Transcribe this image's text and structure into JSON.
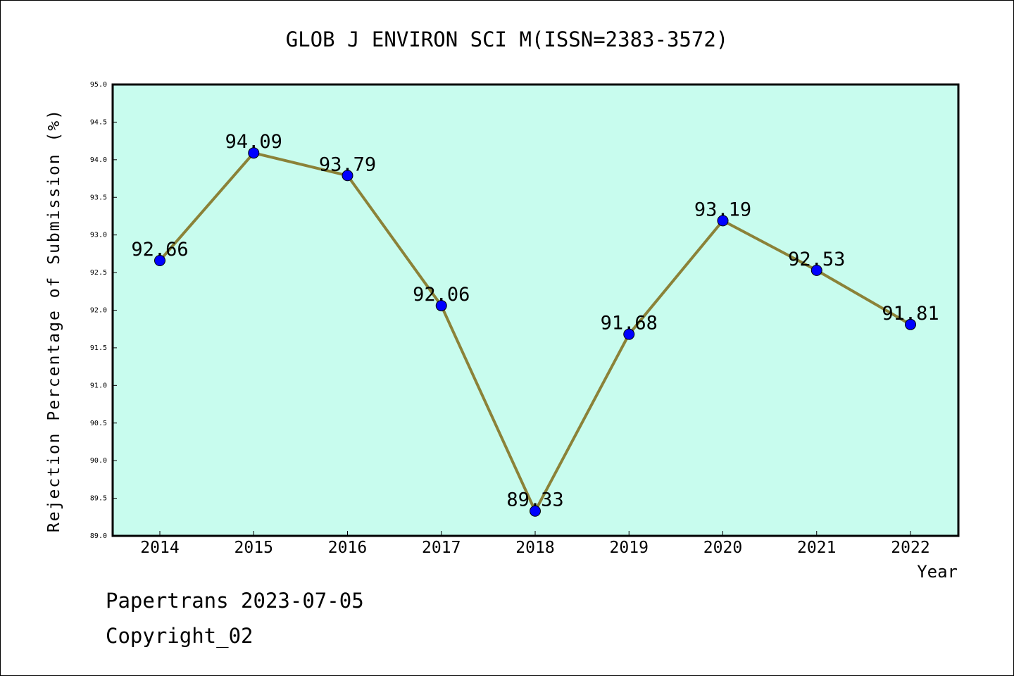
{
  "chart_data": {
    "type": "line",
    "title": "GLOB J ENVIRON SCI M(ISSN=2383-3572)",
    "xlabel": "Year",
    "ylabel": "Rejection Percentage of Submission (%)",
    "categories": [
      "2014",
      "2015",
      "2016",
      "2017",
      "2018",
      "2019",
      "2020",
      "2021",
      "2022"
    ],
    "values": [
      92.66,
      94.09,
      93.79,
      92.06,
      89.33,
      91.68,
      93.19,
      92.53,
      91.81
    ],
    "data_labels": [
      "92.66",
      "94.09",
      "93.79",
      "92.06",
      "89.33",
      "91.68",
      "93.19",
      "92.53",
      "91.81"
    ],
    "ylim": [
      89.0,
      95.0
    ],
    "yticks": [
      "89.0",
      "89.5",
      "90.0",
      "90.5",
      "91.0",
      "91.5",
      "92.0",
      "92.5",
      "93.0",
      "93.5",
      "94.0",
      "94.5",
      "95.0"
    ],
    "grid": false,
    "colors": {
      "plot_background": "#c8fcee",
      "line": "#8b8238",
      "marker": "#0000ff"
    }
  },
  "footer": {
    "line1": "Papertrans 2023-07-05",
    "line2": "Copyright_02"
  }
}
